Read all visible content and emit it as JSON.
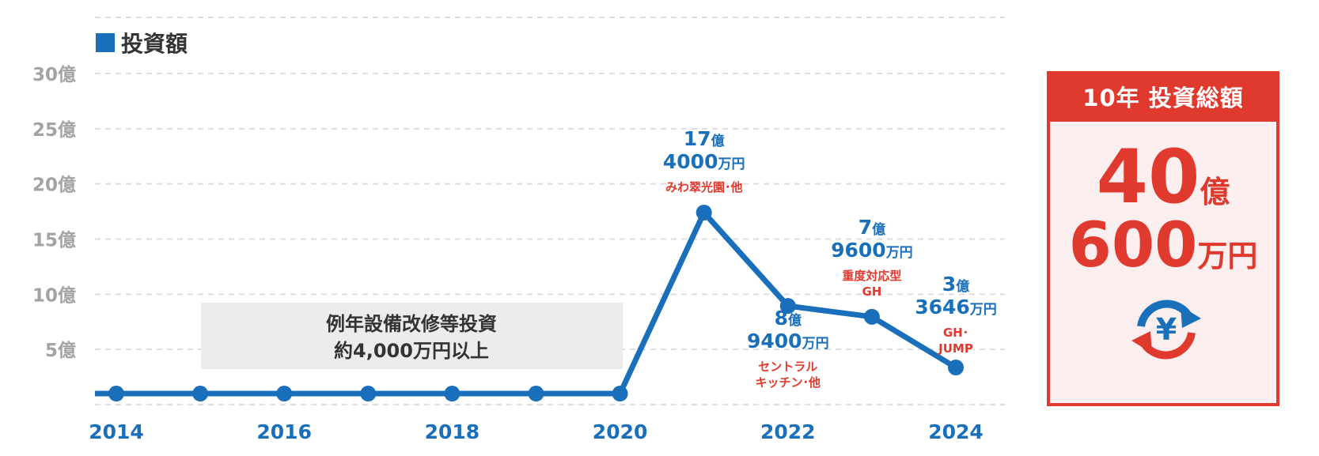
{
  "chart_data": {
    "type": "line",
    "title": "投資額",
    "xlabel": "",
    "ylabel": "",
    "y_unit": "億",
    "x_tick_labels": [
      "2014",
      "2016",
      "2018",
      "2020",
      "2022",
      "2024"
    ],
    "y_tick_labels": [
      "5億",
      "10億",
      "15億",
      "20億",
      "25億",
      "30億"
    ],
    "ylim": [
      0,
      30
    ],
    "grid": true,
    "x": [
      2014,
      2015,
      2016,
      2017,
      2018,
      2019,
      2020,
      2021,
      2022,
      2023,
      2024
    ],
    "series": [
      {
        "values": [
          1,
          1,
          1,
          1,
          1,
          1,
          1,
          17.4,
          8.94,
          7.96,
          3.3646
        ]
      }
    ],
    "annotations": [
      {
        "x": 2021,
        "lines": [
          {
            "text": "17",
            "unit": "億",
            "color": "blue"
          },
          {
            "text": "4000",
            "unit": "万円",
            "color": "blue"
          },
          {
            "text": "みわ翠光園･他",
            "color": "red"
          }
        ]
      },
      {
        "x": 2022,
        "lines": [
          {
            "text": "8",
            "unit": "億",
            "color": "blue"
          },
          {
            "text": "9400",
            "unit": "万円",
            "color": "blue"
          },
          {
            "text": "セントラル",
            "color": "red"
          },
          {
            "text": "キッチン･他",
            "color": "red"
          }
        ]
      },
      {
        "x": 2023,
        "lines": [
          {
            "text": "7",
            "unit": "億",
            "color": "blue"
          },
          {
            "text": "9600",
            "unit": "万円",
            "color": "blue"
          },
          {
            "text": "重度対応型",
            "color": "red"
          },
          {
            "text": "GH",
            "color": "red"
          }
        ]
      },
      {
        "x": 2024,
        "lines": [
          {
            "text": "3",
            "unit": "億",
            "color": "blue"
          },
          {
            "text": "3646",
            "unit": "万円",
            "color": "blue"
          },
          {
            "text": "GH･",
            "color": "red"
          },
          {
            "text": "JUMP",
            "color": "red"
          }
        ]
      }
    ],
    "note_box": {
      "line1": "例年設備改修等投資",
      "line2": "約4,000万円以上"
    }
  },
  "total_box": {
    "header": "10年 投資総額",
    "oku_value": "40",
    "oku_unit": "億",
    "man_value": "600",
    "man_unit": "万円",
    "icon": "yen-cycle-icon",
    "icon_glyph": "¥"
  },
  "colors": {
    "blue": "#1a6fba",
    "red": "#e03a2f",
    "grid": "#dddddd",
    "note_bg": "#ececec",
    "box_bg": "#fbeeee"
  }
}
